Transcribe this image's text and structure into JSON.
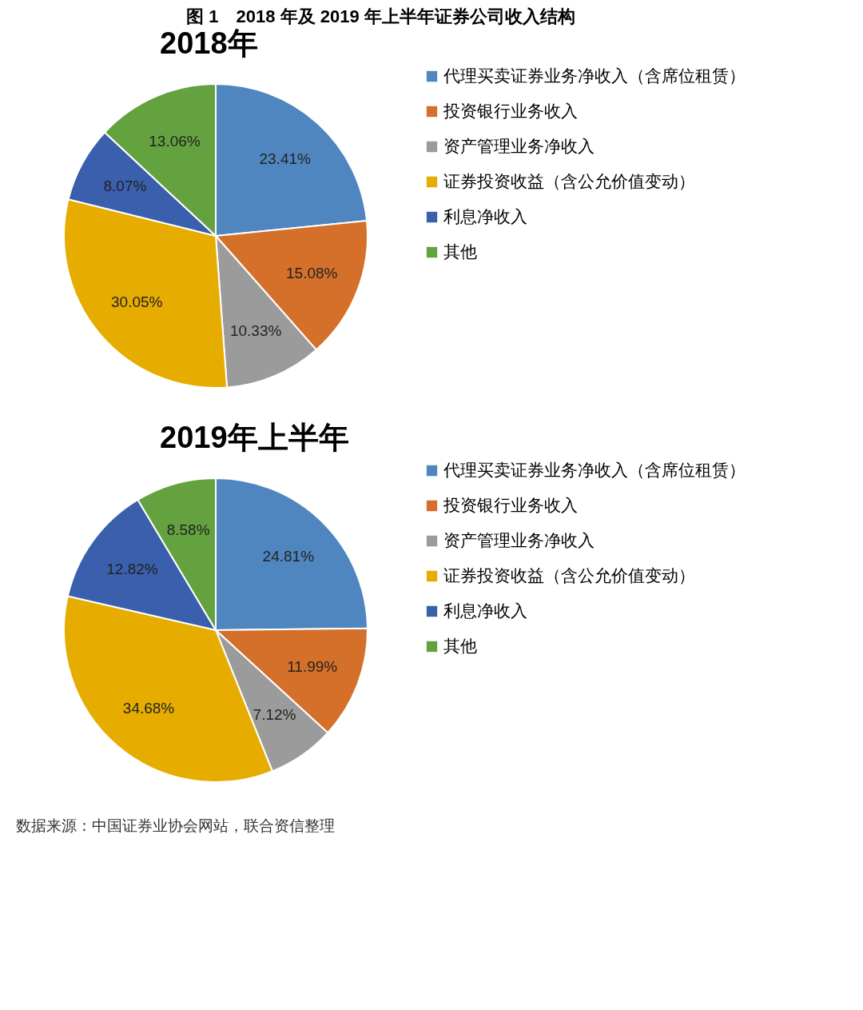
{
  "chart_data": [
    {
      "type": "pie",
      "title": "2018年",
      "annotations": [
        "图 1　2018 年及 2019 年上半年证券公司收入结构"
      ],
      "categories": [
        "代理买卖证券业务净收入（含席位租赁）",
        "投资银行业务收入",
        "资产管理业务净收入",
        "证券投资收益（含公允价值变动）",
        "利息净收入",
        "其他"
      ],
      "values": [
        23.41,
        15.08,
        10.33,
        30.05,
        8.07,
        13.06
      ],
      "value_labels": [
        "23.41%",
        "15.08%",
        "10.33%",
        "30.05%",
        "8.07%",
        "13.06%"
      ],
      "colors": [
        "#4f86c0",
        "#d4702a",
        "#9b9b9b",
        "#e6ac00",
        "#3a5fad",
        "#64a23f"
      ],
      "legend": "right"
    },
    {
      "type": "pie",
      "title": "2019年上半年",
      "annotations": [
        "数据来源：中国证券业协会网站，联合资信整理"
      ],
      "categories": [
        "代理买卖证券业务净收入（含席位租赁）",
        "投资银行业务收入",
        "资产管理业务净收入",
        "证券投资收益（含公允价值变动）",
        "利息净收入",
        "其他"
      ],
      "values": [
        24.81,
        11.99,
        7.12,
        34.68,
        12.82,
        8.58
      ],
      "value_labels": [
        "24.81%",
        "11.99%",
        "7.12%",
        "34.68%",
        "12.82%",
        "8.58%"
      ],
      "colors": [
        "#4f86c0",
        "#d4702a",
        "#9b9b9b",
        "#e6ac00",
        "#3a5fad",
        "#64a23f"
      ],
      "legend": "right"
    }
  ]
}
